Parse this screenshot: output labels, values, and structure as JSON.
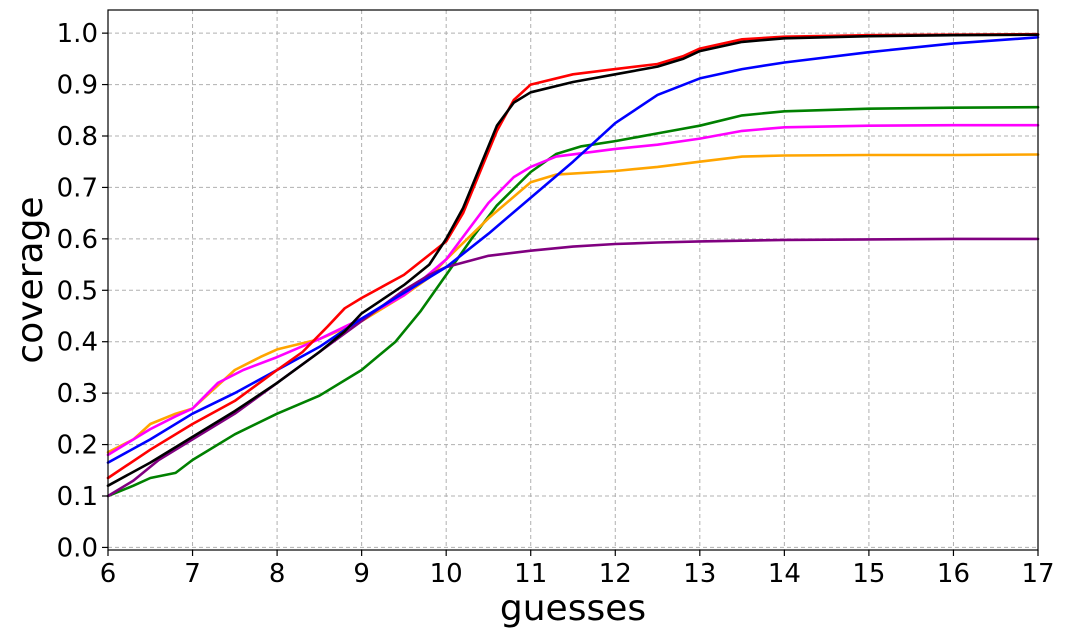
{
  "chart_data": {
    "type": "line",
    "title": "",
    "xlabel": "guesses",
    "ylabel": "coverage",
    "xlim": [
      6,
      17
    ],
    "ylim": [
      -0.005,
      1.045
    ],
    "xticks": [
      "6",
      "7",
      "8",
      "9",
      "10",
      "11",
      "12",
      "13",
      "14",
      "15",
      "16",
      "17"
    ],
    "yticks": [
      "0.0",
      "0.1",
      "0.2",
      "0.3",
      "0.4",
      "0.5",
      "0.6",
      "0.7",
      "0.8",
      "0.9",
      "1.0"
    ],
    "grid": true,
    "legend": "none",
    "series": [
      {
        "color": "#008000",
        "points": [
          [
            6,
            0.1
          ],
          [
            6.3,
            0.12
          ],
          [
            6.5,
            0.135
          ],
          [
            6.8,
            0.145
          ],
          [
            7,
            0.17
          ],
          [
            7.5,
            0.22
          ],
          [
            8,
            0.26
          ],
          [
            8.5,
            0.295
          ],
          [
            9,
            0.345
          ],
          [
            9.4,
            0.4
          ],
          [
            9.7,
            0.46
          ],
          [
            10,
            0.53
          ],
          [
            10.3,
            0.6
          ],
          [
            10.6,
            0.665
          ],
          [
            11,
            0.73
          ],
          [
            11.3,
            0.765
          ],
          [
            11.6,
            0.78
          ],
          [
            12,
            0.79
          ],
          [
            12.5,
            0.805
          ],
          [
            13,
            0.82
          ],
          [
            13.5,
            0.84
          ],
          [
            14,
            0.848
          ],
          [
            15,
            0.853
          ],
          [
            16,
            0.855
          ],
          [
            17,
            0.856
          ]
        ]
      },
      {
        "color": "#ffa500",
        "points": [
          [
            6,
            0.185
          ],
          [
            6.3,
            0.21
          ],
          [
            6.5,
            0.24
          ],
          [
            6.8,
            0.26
          ],
          [
            7,
            0.27
          ],
          [
            7.2,
            0.3
          ],
          [
            7.5,
            0.345
          ],
          [
            7.8,
            0.37
          ],
          [
            8,
            0.385
          ],
          [
            8.5,
            0.405
          ],
          [
            9,
            0.44
          ],
          [
            9.5,
            0.49
          ],
          [
            9.8,
            0.525
          ],
          [
            10,
            0.56
          ],
          [
            10.5,
            0.64
          ],
          [
            11,
            0.71
          ],
          [
            11.3,
            0.725
          ],
          [
            12,
            0.732
          ],
          [
            12.5,
            0.74
          ],
          [
            13,
            0.75
          ],
          [
            13.5,
            0.76
          ],
          [
            14,
            0.762
          ],
          [
            15,
            0.763
          ],
          [
            16,
            0.763
          ],
          [
            17,
            0.764
          ]
        ]
      },
      {
        "color": "#ff00ff",
        "points": [
          [
            6,
            0.18
          ],
          [
            6.3,
            0.21
          ],
          [
            6.5,
            0.23
          ],
          [
            6.8,
            0.255
          ],
          [
            7,
            0.27
          ],
          [
            7.3,
            0.32
          ],
          [
            7.6,
            0.345
          ],
          [
            8,
            0.37
          ],
          [
            8.5,
            0.405
          ],
          [
            9,
            0.445
          ],
          [
            9.5,
            0.49
          ],
          [
            10,
            0.56
          ],
          [
            10.5,
            0.67
          ],
          [
            10.8,
            0.72
          ],
          [
            11,
            0.74
          ],
          [
            11.3,
            0.76
          ],
          [
            12,
            0.775
          ],
          [
            12.5,
            0.783
          ],
          [
            13,
            0.795
          ],
          [
            13.5,
            0.81
          ],
          [
            14,
            0.817
          ],
          [
            15,
            0.82
          ],
          [
            16,
            0.821
          ],
          [
            17,
            0.821
          ]
        ]
      },
      {
        "color": "#800080",
        "points": [
          [
            6,
            0.1
          ],
          [
            6.3,
            0.13
          ],
          [
            6.6,
            0.17
          ],
          [
            7,
            0.21
          ],
          [
            7.5,
            0.26
          ],
          [
            8,
            0.32
          ],
          [
            8.5,
            0.38
          ],
          [
            9,
            0.44
          ],
          [
            9.5,
            0.5
          ],
          [
            9.8,
            0.53
          ],
          [
            10,
            0.545
          ],
          [
            10.5,
            0.567
          ],
          [
            11,
            0.577
          ],
          [
            11.5,
            0.585
          ],
          [
            12,
            0.59
          ],
          [
            12.5,
            0.593
          ],
          [
            13,
            0.595
          ],
          [
            14,
            0.598
          ],
          [
            15,
            0.599
          ],
          [
            16,
            0.6
          ],
          [
            17,
            0.6
          ]
        ]
      },
      {
        "color": "#0000ff",
        "points": [
          [
            6,
            0.165
          ],
          [
            6.5,
            0.21
          ],
          [
            7,
            0.26
          ],
          [
            7.5,
            0.3
          ],
          [
            8,
            0.345
          ],
          [
            8.5,
            0.39
          ],
          [
            9,
            0.445
          ],
          [
            9.5,
            0.495
          ],
          [
            10,
            0.545
          ],
          [
            10.5,
            0.61
          ],
          [
            11,
            0.68
          ],
          [
            11.5,
            0.75
          ],
          [
            12,
            0.825
          ],
          [
            12.5,
            0.88
          ],
          [
            13,
            0.912
          ],
          [
            13.5,
            0.93
          ],
          [
            14,
            0.943
          ],
          [
            15,
            0.963
          ],
          [
            16,
            0.98
          ],
          [
            17,
            0.992
          ]
        ]
      },
      {
        "color": "#ff0000",
        "points": [
          [
            6,
            0.135
          ],
          [
            6.5,
            0.19
          ],
          [
            7,
            0.24
          ],
          [
            7.5,
            0.285
          ],
          [
            8,
            0.345
          ],
          [
            8.3,
            0.38
          ],
          [
            8.6,
            0.43
          ],
          [
            8.8,
            0.465
          ],
          [
            9,
            0.485
          ],
          [
            9.5,
            0.53
          ],
          [
            10,
            0.595
          ],
          [
            10.2,
            0.65
          ],
          [
            10.4,
            0.73
          ],
          [
            10.6,
            0.81
          ],
          [
            10.8,
            0.87
          ],
          [
            11,
            0.9
          ],
          [
            11.5,
            0.92
          ],
          [
            12,
            0.93
          ],
          [
            12.5,
            0.94
          ],
          [
            12.8,
            0.955
          ],
          [
            13,
            0.97
          ],
          [
            13.5,
            0.988
          ],
          [
            14,
            0.993
          ],
          [
            15,
            0.996
          ],
          [
            16,
            0.997
          ],
          [
            17,
            0.998
          ]
        ]
      },
      {
        "color": "#000000",
        "points": [
          [
            6,
            0.12
          ],
          [
            6.5,
            0.165
          ],
          [
            7,
            0.215
          ],
          [
            7.5,
            0.265
          ],
          [
            8,
            0.32
          ],
          [
            8.5,
            0.38
          ],
          [
            8.8,
            0.42
          ],
          [
            9,
            0.455
          ],
          [
            9.5,
            0.51
          ],
          [
            9.8,
            0.55
          ],
          [
            10,
            0.6
          ],
          [
            10.2,
            0.66
          ],
          [
            10.4,
            0.74
          ],
          [
            10.6,
            0.82
          ],
          [
            10.8,
            0.865
          ],
          [
            11,
            0.885
          ],
          [
            11.5,
            0.905
          ],
          [
            12,
            0.92
          ],
          [
            12.5,
            0.935
          ],
          [
            12.8,
            0.95
          ],
          [
            13,
            0.965
          ],
          [
            13.5,
            0.983
          ],
          [
            14,
            0.99
          ],
          [
            15,
            0.994
          ],
          [
            16,
            0.996
          ],
          [
            17,
            0.997
          ]
        ]
      }
    ]
  }
}
